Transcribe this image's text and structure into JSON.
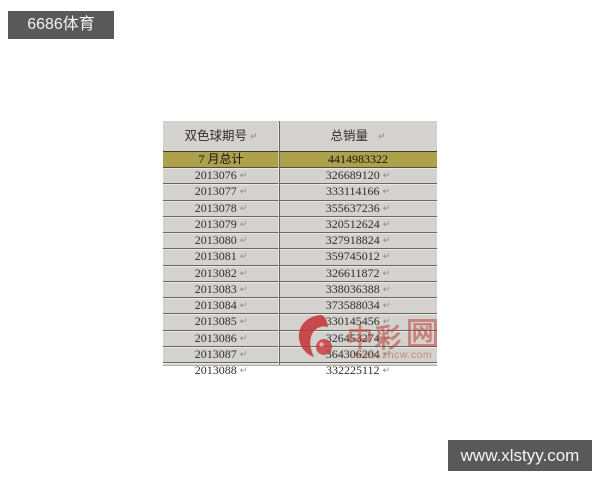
{
  "badges": {
    "top_left": "6686体育",
    "bottom_right": "www.xlstyy.com"
  },
  "table": {
    "columns": [
      {
        "label": "双色球期号"
      },
      {
        "label": "总销量"
      }
    ],
    "summary_row": {
      "issue": "7 月总计",
      "sales": "4414983322"
    },
    "rows": [
      {
        "issue": "2013076",
        "sales": "326689120"
      },
      {
        "issue": "2013077",
        "sales": "333114166"
      },
      {
        "issue": "2013078",
        "sales": "355637236"
      },
      {
        "issue": "2013079",
        "sales": "320512624"
      },
      {
        "issue": "2013080",
        "sales": "327918824"
      },
      {
        "issue": "2013081",
        "sales": "359745012"
      },
      {
        "issue": "2013082",
        "sales": "326611872"
      },
      {
        "issue": "2013083",
        "sales": "338036388"
      },
      {
        "issue": "2013084",
        "sales": "373588034"
      },
      {
        "issue": "2013085",
        "sales": "330145456"
      },
      {
        "issue": "2013086",
        "sales": "326453274"
      },
      {
        "issue": "2013087",
        "sales": "364306204"
      },
      {
        "issue": "2013088",
        "sales": "332225112"
      }
    ]
  },
  "marks": {
    "end_of_cell": "↵"
  },
  "watermark": {
    "char_1": "中",
    "char_2": "彩",
    "char_boxed": "网",
    "url": "www.zhcw.com"
  },
  "colors": {
    "badge_bg": "#595959",
    "table_bg": "#d3d2ce",
    "summary_bg": "#ada14b",
    "accent_red": "#c5363b"
  }
}
